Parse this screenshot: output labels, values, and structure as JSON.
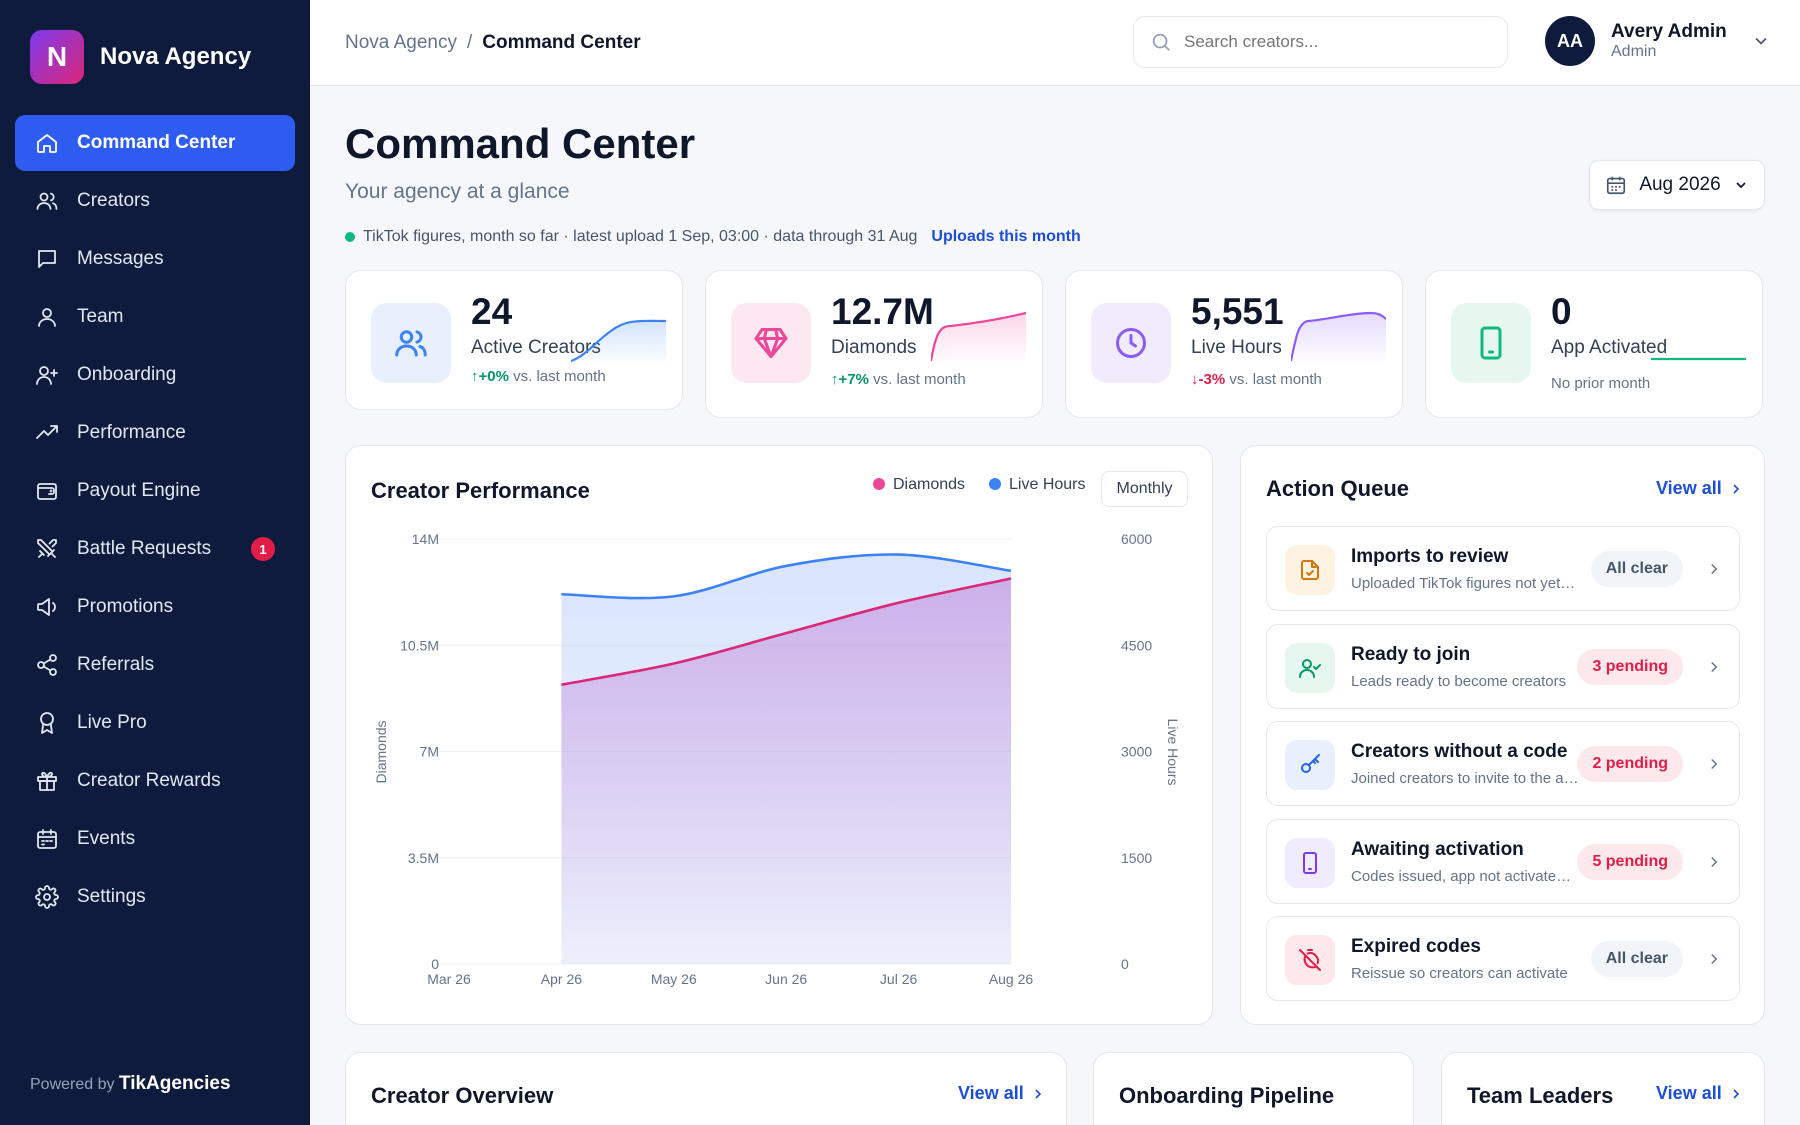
{
  "brand": {
    "logo_letter": "N",
    "name": "Nova Agency",
    "powered_prefix": "Powered by",
    "powered_name": "TikAgencies"
  },
  "nav": [
    {
      "label": "Command Center",
      "icon": "home-icon"
    },
    {
      "label": "Creators",
      "icon": "users-icon"
    },
    {
      "label": "Messages",
      "icon": "message-icon"
    },
    {
      "label": "Team",
      "icon": "team-icon"
    },
    {
      "label": "Onboarding",
      "icon": "user-plus-icon"
    },
    {
      "label": "Performance",
      "icon": "trending-up-icon"
    },
    {
      "label": "Payout Engine",
      "icon": "wallet-icon"
    },
    {
      "label": "Battle Requests",
      "icon": "swords-icon",
      "badge": "1"
    },
    {
      "label": "Promotions",
      "icon": "megaphone-icon"
    },
    {
      "label": "Referrals",
      "icon": "share-icon"
    },
    {
      "label": "Live Pro",
      "icon": "award-icon"
    },
    {
      "label": "Creator Rewards",
      "icon": "gift-icon"
    },
    {
      "label": "Events",
      "icon": "calendar-icon"
    },
    {
      "label": "Settings",
      "icon": "gear-icon"
    }
  ],
  "topbar": {
    "breadcrumb_root": "Nova Agency",
    "breadcrumb_sep": "/",
    "breadcrumb_current": "Command Center",
    "search_placeholder": "Search creators...",
    "user_initials": "AA",
    "user_name": "Avery Admin",
    "user_role": "Admin"
  },
  "header": {
    "title": "Command Center",
    "subtitle": "Your agency at a glance",
    "date_value": "Aug 2026",
    "status_text": "TikTok figures, month so far · latest upload 1 Sep, 03:00 · data through 31 Aug",
    "status_link": "Uploads this month"
  },
  "stats": [
    {
      "value": "24",
      "label": "Active Creators",
      "delta": "+0%",
      "delta_suffix": "vs. last month",
      "trend": "up",
      "color": "#3b82f6"
    },
    {
      "value": "12.7M",
      "label": "Diamonds",
      "delta": "+7%",
      "delta_suffix": "vs. last month",
      "trend": "up",
      "color": "#ec4899"
    },
    {
      "value": "5,551",
      "label": "Live Hours",
      "delta": "-3%",
      "delta_suffix": "vs. last month",
      "trend": "down",
      "color": "#8b5cf6"
    },
    {
      "value": "0",
      "label": "App Activated",
      "delta": "",
      "delta_suffix": "No prior month",
      "trend": "none",
      "color": "#10b981"
    }
  ],
  "performance": {
    "title": "Creator Performance",
    "legend_diamonds": "Diamonds",
    "legend_hours": "Live Hours",
    "period": "Monthly"
  },
  "chart_data": {
    "type": "area",
    "title": "Creator Performance",
    "categories": [
      "Mar 26",
      "Apr 26",
      "May 26",
      "Jun 26",
      "Jul 26",
      "Aug 26"
    ],
    "y_left": {
      "label": "Diamonds",
      "ticks": [
        "0",
        "3.5M",
        "7M",
        "10.5M",
        "14M"
      ],
      "lim": [
        0,
        14000000
      ]
    },
    "y_right": {
      "label": "Live Hours",
      "ticks": [
        "0",
        "1500",
        "3000",
        "4500",
        "6000"
      ],
      "lim": [
        0,
        6000
      ]
    },
    "series": [
      {
        "name": "Diamonds",
        "axis": "left",
        "color": "#db2777",
        "values": [
          null,
          9200000,
          9900000,
          10900000,
          11900000,
          12700000
        ]
      },
      {
        "name": "Live Hours",
        "axis": "right",
        "color": "#3b82f6",
        "values": [
          null,
          5220,
          5190,
          5620,
          5780,
          5551
        ]
      }
    ],
    "grid": true,
    "legend": "top-right"
  },
  "action_queue": {
    "title": "Action Queue",
    "view_all": "View all",
    "items": [
      {
        "title": "Imports to review",
        "desc": "Uploaded TikTok figures not yet applied",
        "pill": "All clear",
        "state": "clear",
        "icon": "file-review-icon",
        "color": "#d97706",
        "bg": "#fef3e2"
      },
      {
        "title": "Ready to join",
        "desc": "Leads ready to become creators",
        "pill": "3 pending",
        "state": "pending",
        "icon": "user-check-icon",
        "color": "#059669",
        "bg": "#e6f7f0"
      },
      {
        "title": "Creators without a code",
        "desc": "Joined creators to invite to the app",
        "pill": "2 pending",
        "state": "pending",
        "icon": "key-icon",
        "color": "#2563eb",
        "bg": "#e8f0fe"
      },
      {
        "title": "Awaiting activation",
        "desc": "Codes issued, app not activated yet",
        "pill": "5 pending",
        "state": "pending",
        "icon": "phone-icon",
        "color": "#7c3aed",
        "bg": "#f1ebfe"
      },
      {
        "title": "Expired codes",
        "desc": "Reissue so creators can activate",
        "pill": "All clear",
        "state": "clear",
        "icon": "timer-off-icon",
        "color": "#e11d48",
        "bg": "#fde8ec"
      }
    ]
  },
  "bottom": {
    "overview_title": "Creator Overview",
    "overview_view_all": "View all",
    "pipeline_title": "Onboarding Pipeline",
    "leaders_title": "Team Leaders",
    "leaders_view_all": "View all"
  }
}
